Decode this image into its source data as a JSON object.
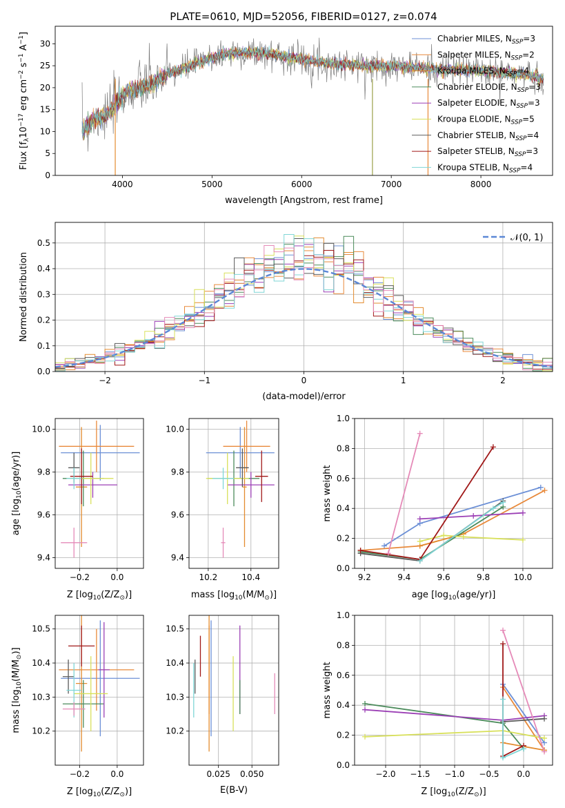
{
  "figure": {
    "title": "PLATE=0610, MJD=52056, FIBERID=0127, z=0.074"
  },
  "legend_ssp": [
    {
      "text": "Chabrier MILES, N",
      "sub": "SSP",
      "suffix": "=3",
      "color": "#6b8fd6"
    },
    {
      "text": "Salpeter MILES, N",
      "sub": "SSP",
      "suffix": "=2",
      "color": "#e8893a"
    },
    {
      "text": "Kroupa MILES, N",
      "sub": "SSP",
      "suffix": "=4",
      "color": "#e38b2e"
    },
    {
      "text": "Chabrier ELODIE, N",
      "sub": "SSP",
      "suffix": "=3",
      "color": "#4a8a5a"
    },
    {
      "text": "Salpeter ELODIE, N",
      "sub": "SSP",
      "suffix": "=3",
      "color": "#9b3fb5"
    },
    {
      "text": "Kroupa ELODIE, N",
      "sub": "SSP",
      "suffix": "=5",
      "color": "#d8e05a"
    },
    {
      "text": "Chabrier STELIB, N",
      "sub": "SSP",
      "suffix": "=4",
      "color": "#5a5a5a"
    },
    {
      "text": "Salpeter STELIB, N",
      "sub": "SSP",
      "suffix": "=3",
      "color": "#a01818"
    },
    {
      "text": "Kroupa STELIB, N",
      "sub": "SSP",
      "suffix": "=4",
      "color": "#7fd6d6"
    }
  ],
  "legend_normal": "𝒩(0, 1)",
  "colors": {
    "data": "#7a7a7a",
    "normal": "#5b87d6",
    "pink": "#e58ab8",
    "grid": "#b0b0b0"
  },
  "chart_data": [
    {
      "type": "line",
      "id": "spectrum",
      "xlabel": "wavelength [Angstrom, rest frame]",
      "ylabel_main": "Flux [f",
      "ylabel_lambda": "λ",
      "ylabel_mid": "10",
      "ylabel_exp": "−17",
      "ylabel_rest": " erg cm",
      "ylabel_exp2": "−2",
      "ylabel_rest2": " s",
      "ylabel_exp3": "−1",
      "ylabel_rest3": " A",
      "ylabel_exp4": "−1",
      "ylabel_end": "]",
      "xlim": [
        3250,
        8800
      ],
      "ylim": [
        0,
        34
      ],
      "xticks": [
        4000,
        5000,
        6000,
        7000,
        8000
      ],
      "yticks": [
        0,
        5,
        10,
        15,
        20,
        25,
        30
      ],
      "continuum": [
        [
          3550,
          10
        ],
        [
          3700,
          13
        ],
        [
          3850,
          14
        ],
        [
          3950,
          17
        ],
        [
          4050,
          19
        ],
        [
          4200,
          20
        ],
        [
          4350,
          21
        ],
        [
          4500,
          23
        ],
        [
          4700,
          24.5
        ],
        [
          4900,
          26
        ],
        [
          5100,
          27.5
        ],
        [
          5300,
          28
        ],
        [
          5500,
          28
        ],
        [
          5700,
          27.5
        ],
        [
          6000,
          26.5
        ],
        [
          6300,
          25.5
        ],
        [
          6700,
          25
        ],
        [
          7000,
          25
        ],
        [
          7300,
          24.5
        ],
        [
          7600,
          24
        ],
        [
          7900,
          24
        ],
        [
          8200,
          23.5
        ],
        [
          8500,
          23
        ],
        [
          8700,
          22
        ]
      ],
      "glitches": [
        {
          "x": 3920,
          "color": "#e38b2e"
        },
        {
          "x": 6790,
          "color": "#9aa04a"
        },
        {
          "x": 7410,
          "color": "#e8893a"
        }
      ]
    },
    {
      "type": "histogram",
      "id": "residuals",
      "xlabel": "(data-model)/error",
      "ylabel": "Normed distribution",
      "xlim": [
        -2.5,
        2.5
      ],
      "ylim": [
        0,
        0.58
      ],
      "xticks": [
        -2,
        -1,
        0,
        1,
        2
      ],
      "yticks": [
        0.0,
        0.1,
        0.2,
        0.3,
        0.4,
        0.5
      ],
      "bin_width": 0.1
    },
    {
      "type": "errorbar",
      "id": "age-vs-z",
      "xlabel": "Z [log",
      "xlabel_sub": "10",
      "xlabel_rest": "(Z/Z",
      "xlabel_sun": "⊙",
      "xlabel_end": ")]",
      "ylabel": "age  [log",
      "ylabel_sub": "10",
      "ylabel_rest": "(age/yr)]",
      "xlim": [
        -0.33,
        0.14
      ],
      "ylim": [
        9.35,
        10.05
      ],
      "xticks": [
        -0.2,
        0.0
      ],
      "yticks": [
        9.4,
        9.6,
        9.8,
        10.0
      ],
      "points": [
        {
          "x": -0.09,
          "xerr": 0.21,
          "y": 9.89,
          "yerr": 0.13,
          "color": "#6b8fd6"
        },
        {
          "x": -0.11,
          "xerr": 0.2,
          "y": 9.92,
          "yerr": 0.12,
          "color": "#e8893a"
        },
        {
          "x": -0.19,
          "xerr": 0.03,
          "y": 9.73,
          "yerr": 0.28,
          "color": "#e38b2e"
        },
        {
          "x": -0.18,
          "xerr": 0.11,
          "y": 9.77,
          "yerr": 0.13,
          "color": "#4a8a5a"
        },
        {
          "x": -0.13,
          "xerr": 0.13,
          "y": 9.74,
          "yerr": 0.06,
          "color": "#9b3fb5"
        },
        {
          "x": -0.14,
          "xerr": 0.12,
          "y": 9.77,
          "yerr": 0.12,
          "color": "#d8e05a"
        },
        {
          "x": -0.23,
          "xerr": 0.03,
          "y": 9.82,
          "yerr": 0.07,
          "color": "#5a5a5a"
        },
        {
          "x": -0.19,
          "xerr": 0.06,
          "y": 9.78,
          "yerr": 0.13,
          "color": "#a01818"
        },
        {
          "x": -0.23,
          "xerr": 0.04,
          "y": 9.77,
          "yerr": 0.05,
          "color": "#7fd6d6"
        },
        {
          "x": -0.23,
          "xerr": 0.07,
          "y": 9.47,
          "yerr": 0.07,
          "color": "#e58ab8"
        }
      ]
    },
    {
      "type": "errorbar",
      "id": "age-vs-mass",
      "xlabel": "mass [log",
      "xlabel_sub": "10",
      "xlabel_rest": "(M/M",
      "xlabel_sun": "⊙",
      "xlabel_end": ")]",
      "xlim": [
        10.11,
        10.53
      ],
      "ylim": [
        9.35,
        10.05
      ],
      "xticks": [
        10.2,
        10.4
      ],
      "yticks": [
        9.4,
        9.6,
        9.8,
        10.0
      ],
      "points": [
        {
          "x": 10.35,
          "xerr": 0.16,
          "y": 9.89,
          "yerr": 0.12,
          "color": "#6b8fd6"
        },
        {
          "x": 10.38,
          "xerr": 0.11,
          "y": 9.92,
          "yerr": 0.12,
          "color": "#e8893a"
        },
        {
          "x": 10.37,
          "xerr": 0.01,
          "y": 9.73,
          "yerr": 0.28,
          "color": "#e38b2e"
        },
        {
          "x": 10.32,
          "xerr": 0.12,
          "y": 9.77,
          "yerr": 0.13,
          "color": "#4a8a5a"
        },
        {
          "x": 10.4,
          "xerr": 0.11,
          "y": 9.74,
          "yerr": 0.06,
          "color": "#9b3fb5"
        },
        {
          "x": 10.29,
          "xerr": 0.1,
          "y": 9.77,
          "yerr": 0.12,
          "color": "#d8e05a"
        },
        {
          "x": 10.36,
          "xerr": 0.03,
          "y": 9.82,
          "yerr": 0.09,
          "color": "#5a5a5a"
        },
        {
          "x": 10.45,
          "xerr": 0.03,
          "y": 9.78,
          "yerr": 0.12,
          "color": "#a01818"
        },
        {
          "x": 10.27,
          "xerr": 0.05,
          "y": 9.77,
          "yerr": 0.05,
          "color": "#7fd6d6"
        },
        {
          "x": 10.27,
          "xerr": 0.01,
          "y": 9.47,
          "yerr": 0.07,
          "color": "#e58ab8"
        }
      ]
    },
    {
      "type": "line",
      "id": "weight-vs-age",
      "xlabel": "age  [log",
      "xlabel_sub": "10",
      "xlabel_rest": "(age/yr)]",
      "ylabel": "mass weight",
      "xlim": [
        9.15,
        10.15
      ],
      "ylim": [
        0,
        1
      ],
      "xticks": [
        9.2,
        9.4,
        9.6,
        9.8,
        10.0
      ],
      "yticks": [
        0.0,
        0.2,
        0.4,
        0.6,
        0.8,
        1.0
      ],
      "series": [
        {
          "color": "#6b8fd6",
          "x": [
            9.3,
            9.48,
            10.09
          ],
          "y": [
            0.15,
            0.3,
            0.54
          ]
        },
        {
          "color": "#e8893a",
          "x": [
            9.18,
            9.48,
            9.7,
            10.11
          ],
          "y": [
            0.12,
            0.15,
            0.23,
            0.52
          ]
        },
        {
          "color": "#e38b2e",
          "x": [
            9.48,
            9.7
          ],
          "y": [
            0.15,
            0.23
          ]
        },
        {
          "color": "#4a8a5a",
          "x": [
            9.18,
            9.48,
            9.9
          ],
          "y": [
            0.11,
            0.06,
            0.41
          ]
        },
        {
          "color": "#9b3fb5",
          "x": [
            9.48,
            9.75,
            10.0
          ],
          "y": [
            0.33,
            0.35,
            0.37
          ]
        },
        {
          "color": "#d8e05a",
          "x": [
            9.48,
            9.6,
            9.7,
            10.0
          ],
          "y": [
            0.18,
            0.22,
            0.21,
            0.19
          ]
        },
        {
          "color": "#5a5a5a",
          "x": [
            9.18,
            9.48,
            9.9
          ],
          "y": [
            0.1,
            0.05,
            0.45
          ]
        },
        {
          "color": "#a01818",
          "x": [
            9.18,
            9.48,
            9.85
          ],
          "y": [
            0.12,
            0.06,
            0.81
          ]
        },
        {
          "color": "#7fd6d6",
          "x": [
            9.48,
            9.85,
            9.9
          ],
          "y": [
            0.05,
            0.4,
            0.44
          ]
        },
        {
          "color": "#e58ab8",
          "x": [
            9.32,
            9.48
          ],
          "y": [
            0.1,
            0.9
          ]
        }
      ]
    },
    {
      "type": "errorbar",
      "id": "mass-vs-z",
      "xlabel": "Z [log",
      "xlabel_sub": "10",
      "xlabel_rest": "(Z/Z",
      "xlabel_sun": "⊙",
      "xlabel_end": ")]",
      "ylabel": "mass [log",
      "ylabel_sub": "10",
      "ylabel_rest": "(M/M",
      "ylabel_sun": "⊙",
      "ylabel_end": ")]",
      "xlim": [
        -0.33,
        0.14
      ],
      "ylim": [
        10.1,
        10.54
      ],
      "xticks": [
        -0.2,
        0.0
      ],
      "yticks": [
        10.2,
        10.3,
        10.4,
        10.5
      ],
      "points": [
        {
          "x": -0.09,
          "xerr": 0.21,
          "y": 10.355,
          "yerr": 0.17,
          "color": "#6b8fd6"
        },
        {
          "x": -0.11,
          "xerr": 0.2,
          "y": 10.38,
          "yerr": 0.12,
          "color": "#e8893a"
        },
        {
          "x": -0.19,
          "xerr": 0.03,
          "y": 10.34,
          "yerr": 0.2,
          "color": "#e38b2e"
        },
        {
          "x": -0.18,
          "xerr": 0.11,
          "y": 10.28,
          "yerr": 0.07,
          "color": "#4a8a5a"
        },
        {
          "x": -0.07,
          "xerr": 0.03,
          "y": 10.38,
          "yerr": 0.14,
          "color": "#9b3fb5"
        },
        {
          "x": -0.14,
          "xerr": 0.09,
          "y": 10.31,
          "yerr": 0.11,
          "color": "#d8e05a"
        },
        {
          "x": -0.26,
          "xerr": 0.03,
          "y": 10.36,
          "yerr": 0.05,
          "color": "#5a5a5a"
        },
        {
          "x": -0.19,
          "xerr": 0.07,
          "y": 10.45,
          "yerr": 0.06,
          "color": "#a01818"
        },
        {
          "x": -0.23,
          "xerr": 0.04,
          "y": 10.32,
          "yerr": 0.08,
          "color": "#7fd6d6"
        },
        {
          "x": -0.23,
          "xerr": 0.06,
          "y": 10.265,
          "yerr": 0.02,
          "color": "#e58ab8"
        }
      ]
    },
    {
      "type": "errorbar",
      "id": "mass-vs-ebv",
      "xlabel": "E(B-V)",
      "xlim": [
        0.003,
        0.07
      ],
      "ylim": [
        10.1,
        10.54
      ],
      "xticks": [
        0.025,
        0.05
      ],
      "xticklabels": [
        "0.025",
        "0.050"
      ],
      "yticks": [
        10.2,
        10.3,
        10.4,
        10.5
      ],
      "points": [
        {
          "x": 0.0195,
          "y": 10.355,
          "yerr": 0.17,
          "color": "#6b8fd6"
        },
        {
          "x": 0.018,
          "y": 10.38,
          "yerr": 0.13,
          "color": "#e8893a"
        },
        {
          "x": 0.018,
          "y": 10.34,
          "yerr": 0.2,
          "color": "#e38b2e"
        },
        {
          "x": 0.041,
          "y": 10.38,
          "yerr": 0.13,
          "color": "#9b3fb5"
        },
        {
          "x": 0.036,
          "y": 10.31,
          "yerr": 0.11,
          "color": "#d8e05a"
        },
        {
          "x": 0.0075,
          "y": 10.36,
          "yerr": 0.05,
          "color": "#5a5a5a"
        },
        {
          "x": 0.0115,
          "y": 10.42,
          "yerr": 0.06,
          "color": "#a01818"
        },
        {
          "x": 0.0065,
          "y": 10.32,
          "yerr": 0.08,
          "color": "#7fd6d6"
        },
        {
          "x": 0.067,
          "y": 10.31,
          "yerr": 0.06,
          "color": "#e58ab8"
        },
        {
          "x": 0.041,
          "y": 10.3,
          "yerr": 0.05,
          "color": "#4a8a5a"
        }
      ]
    },
    {
      "type": "line",
      "id": "weight-vs-z",
      "xlabel": "Z [log",
      "xlabel_sub": "10",
      "xlabel_rest": "(Z/Z",
      "xlabel_sun": "⊙",
      "xlabel_end": ")]",
      "ylabel": "mass weight",
      "xlim": [
        -2.45,
        0.42
      ],
      "ylim": [
        0,
        1
      ],
      "xticks": [
        -2.0,
        -1.5,
        -1.0,
        -0.5,
        0.0
      ],
      "xticklabels": [
        "−2.0",
        "−1.5",
        "−1.0",
        "−0.5",
        "0.0"
      ],
      "yticks": [
        0.0,
        0.2,
        0.4,
        0.6,
        0.8,
        1.0
      ],
      "series": [
        {
          "color": "#6b8fd6",
          "x": [
            -0.3,
            0.3
          ],
          "y": [
            0.54,
            0.15
          ]
        },
        {
          "color": "#e8893a",
          "x": [
            -0.3,
            0.3
          ],
          "y": [
            0.52,
            0.1
          ]
        },
        {
          "color": "#e38b2e",
          "x": [
            -0.3,
            0.3
          ],
          "y": [
            0.15,
            0.1
          ]
        },
        {
          "color": "#4a8a5a",
          "x": [
            -2.3,
            -0.3,
            0.0
          ],
          "y": [
            0.41,
            0.28,
            0.11
          ]
        },
        {
          "color": "#9b3fb5",
          "x": [
            -2.3,
            -0.3,
            0.3
          ],
          "y": [
            0.37,
            0.3,
            0.33
          ]
        },
        {
          "color": "#d8e05a",
          "x": [
            -2.3,
            -0.3,
            0.3
          ],
          "y": [
            0.19,
            0.23,
            0.18
          ]
        },
        {
          "color": "#5a5a5a",
          "x": [
            -0.3,
            0.3
          ],
          "y": [
            0.29,
            0.31
          ]
        },
        {
          "color": "#a01818",
          "x": [
            -0.3,
            -0.3,
            0.0
          ],
          "y": [
            0.81,
            0.06,
            0.13
          ]
        },
        {
          "color": "#7fd6d6",
          "x": [
            -0.3,
            -0.3,
            0.0
          ],
          "y": [
            0.44,
            0.05,
            0.11
          ]
        },
        {
          "color": "#e58ab8",
          "x": [
            -0.3,
            0.3
          ],
          "y": [
            0.9,
            0.09
          ]
        }
      ]
    }
  ]
}
